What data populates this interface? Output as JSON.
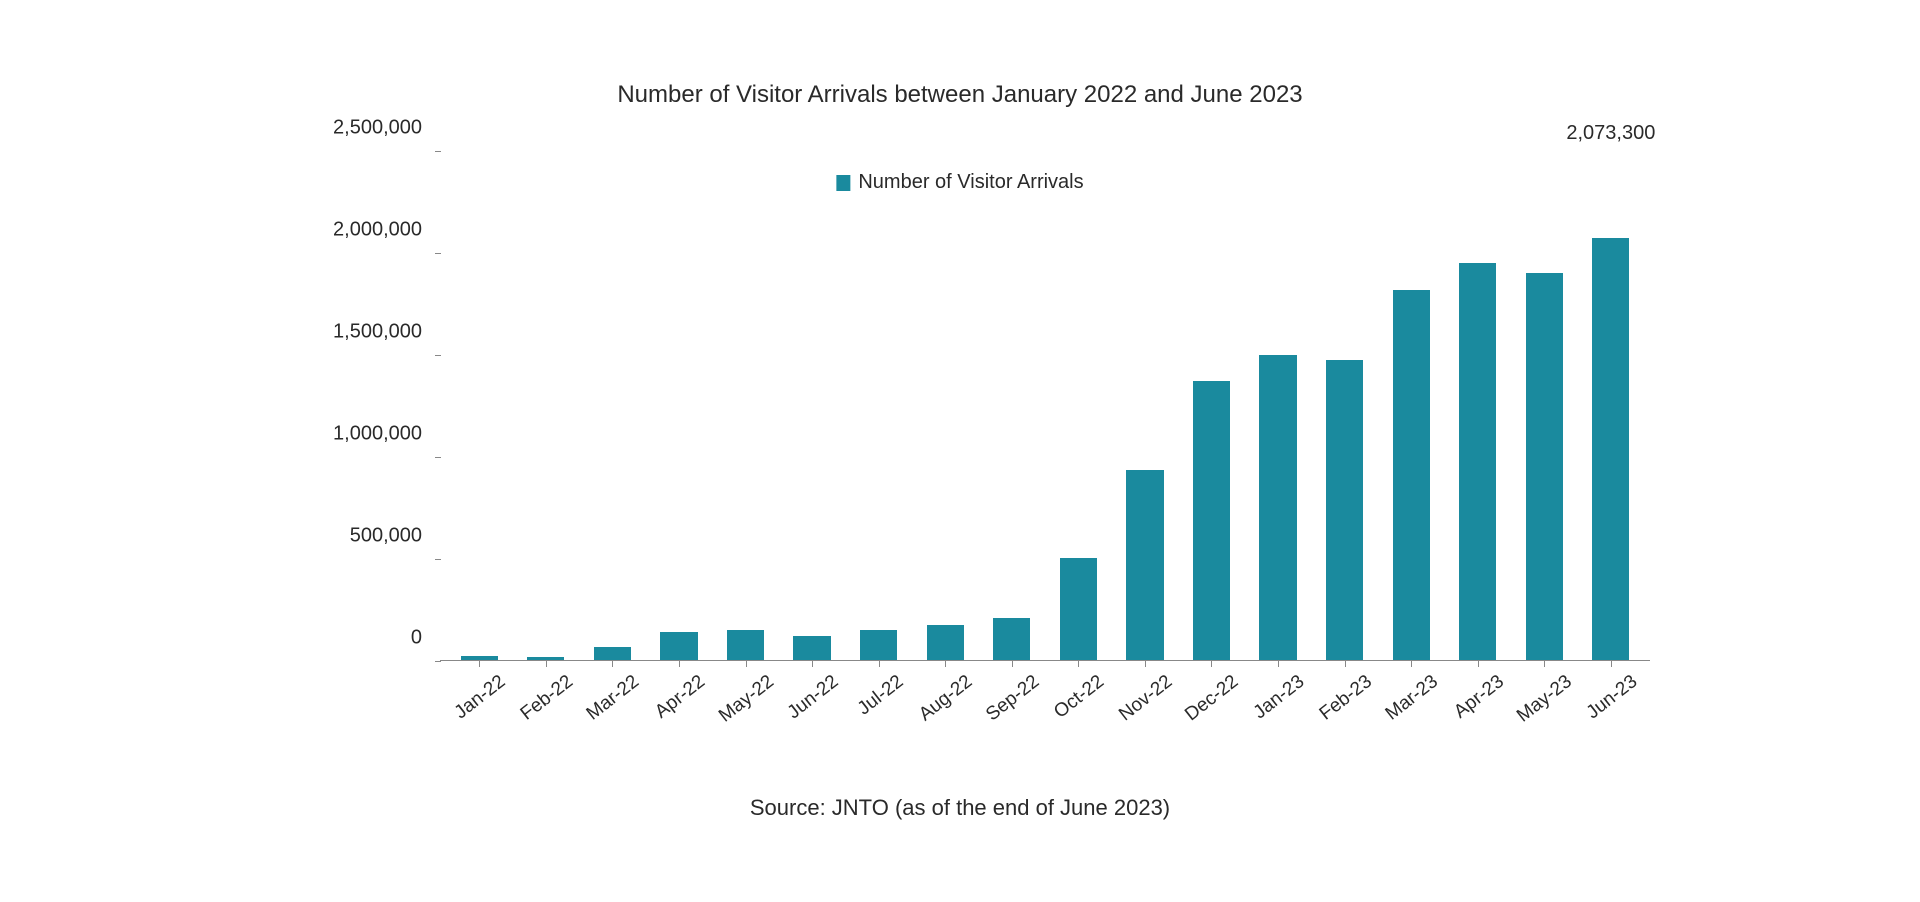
{
  "chart": {
    "type": "bar",
    "title": "Number of Visitor Arrivals between January 2022 and June 2023",
    "legend_label": "Number of Visitor Arrivals",
    "source": "Source: JNTO (as of the end of June 2023)",
    "bar_color": "#1a8a9e",
    "legend_swatch_color": "#1a8a9e",
    "title_color": "#2a2a2a",
    "text_color": "#2a2a2a",
    "axis_line_color": "#888888",
    "background_color": "#ffffff",
    "title_fontsize": 24,
    "label_fontsize": 20,
    "tick_fontsize": 20,
    "ylim": [
      0,
      2500000
    ],
    "ytick_step": 500000,
    "y_ticks": [
      {
        "value": 0,
        "label": "0"
      },
      {
        "value": 500000,
        "label": "500,000"
      },
      {
        "value": 1000000,
        "label": "1,000,000"
      },
      {
        "value": 1500000,
        "label": "1,500,000"
      },
      {
        "value": 2000000,
        "label": "2,000,000"
      },
      {
        "value": 2500000,
        "label": "2,500,000"
      }
    ],
    "categories": [
      "Jan-22",
      "Feb-22",
      "Mar-22",
      "Apr-22",
      "May-22",
      "Jun-22",
      "Jul-22",
      "Aug-22",
      "Sep-22",
      "Oct-22",
      "Nov-22",
      "Dec-22",
      "Jan-23",
      "Feb-23",
      "Mar-23",
      "Apr-23",
      "May-23",
      "Jun-23"
    ],
    "values": [
      18000,
      17000,
      66000,
      140000,
      147000,
      120000,
      145000,
      170000,
      207000,
      499000,
      935000,
      1370000,
      1498000,
      1476000,
      1818000,
      1949000,
      1900000,
      2073300
    ],
    "data_labels": [
      "",
      "",
      "",
      "",
      "",
      "",
      "",
      "",
      "",
      "",
      "",
      "",
      "",
      "",
      "",
      "",
      "",
      "2,073,300"
    ],
    "bar_width_ratio": 0.56,
    "x_label_rotation_deg": -38
  }
}
